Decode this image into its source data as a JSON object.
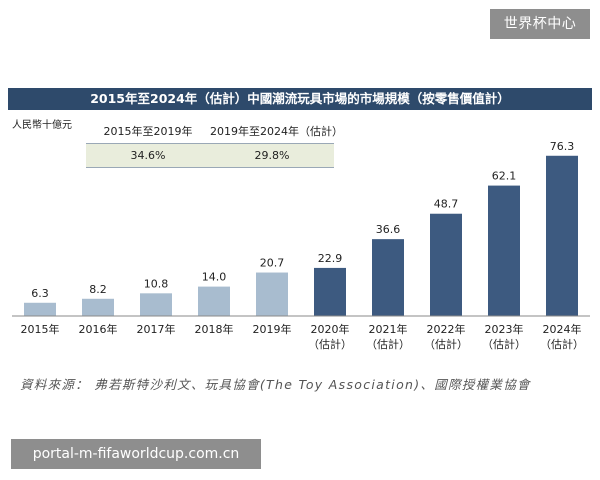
{
  "watermark_top": "世界杯中心",
  "watermark_bottom": "portal-m-fifaworldcup.com.cn",
  "source": "資料來源： 弗若斯特沙利文、玩具協會(The Toy Association)、國際授權業協會",
  "cagr_table": {
    "headers": [
      "2015年至2019年",
      "2019年至2024年（估計）"
    ],
    "values": [
      "34.6%",
      "29.8%"
    ],
    "row_color": "#e9eddc"
  },
  "colors": {
    "title_bar": "#2e4a6b",
    "historical_bar": "#a8bccf",
    "forecast_bar": "#3d5a80"
  },
  "chart_data": {
    "type": "bar",
    "title": "2015年至2024年（估計）中國潮流玩具市場的市場規模（按零售價值計）",
    "ylabel": "人民幣十億元",
    "xlabel": "",
    "categories": [
      {
        "year": "2015年",
        "note": ""
      },
      {
        "year": "2016年",
        "note": ""
      },
      {
        "year": "2017年",
        "note": ""
      },
      {
        "year": "2018年",
        "note": ""
      },
      {
        "year": "2019年",
        "note": ""
      },
      {
        "year": "2020年",
        "note": "（估計）"
      },
      {
        "year": "2021年",
        "note": "（估計）"
      },
      {
        "year": "2022年",
        "note": "（估計）"
      },
      {
        "year": "2023年",
        "note": "（估計）"
      },
      {
        "year": "2024年",
        "note": "（估計）"
      }
    ],
    "values": [
      6.3,
      8.2,
      10.8,
      14.0,
      20.7,
      22.9,
      36.6,
      48.7,
      62.1,
      76.3
    ],
    "value_labels": [
      "6.3",
      "8.2",
      "10.8",
      "14.0",
      "20.7",
      "22.9",
      "36.6",
      "48.7",
      "62.1",
      "76.3"
    ],
    "ylim": [
      0,
      80
    ],
    "grid": false,
    "legend": "none"
  }
}
